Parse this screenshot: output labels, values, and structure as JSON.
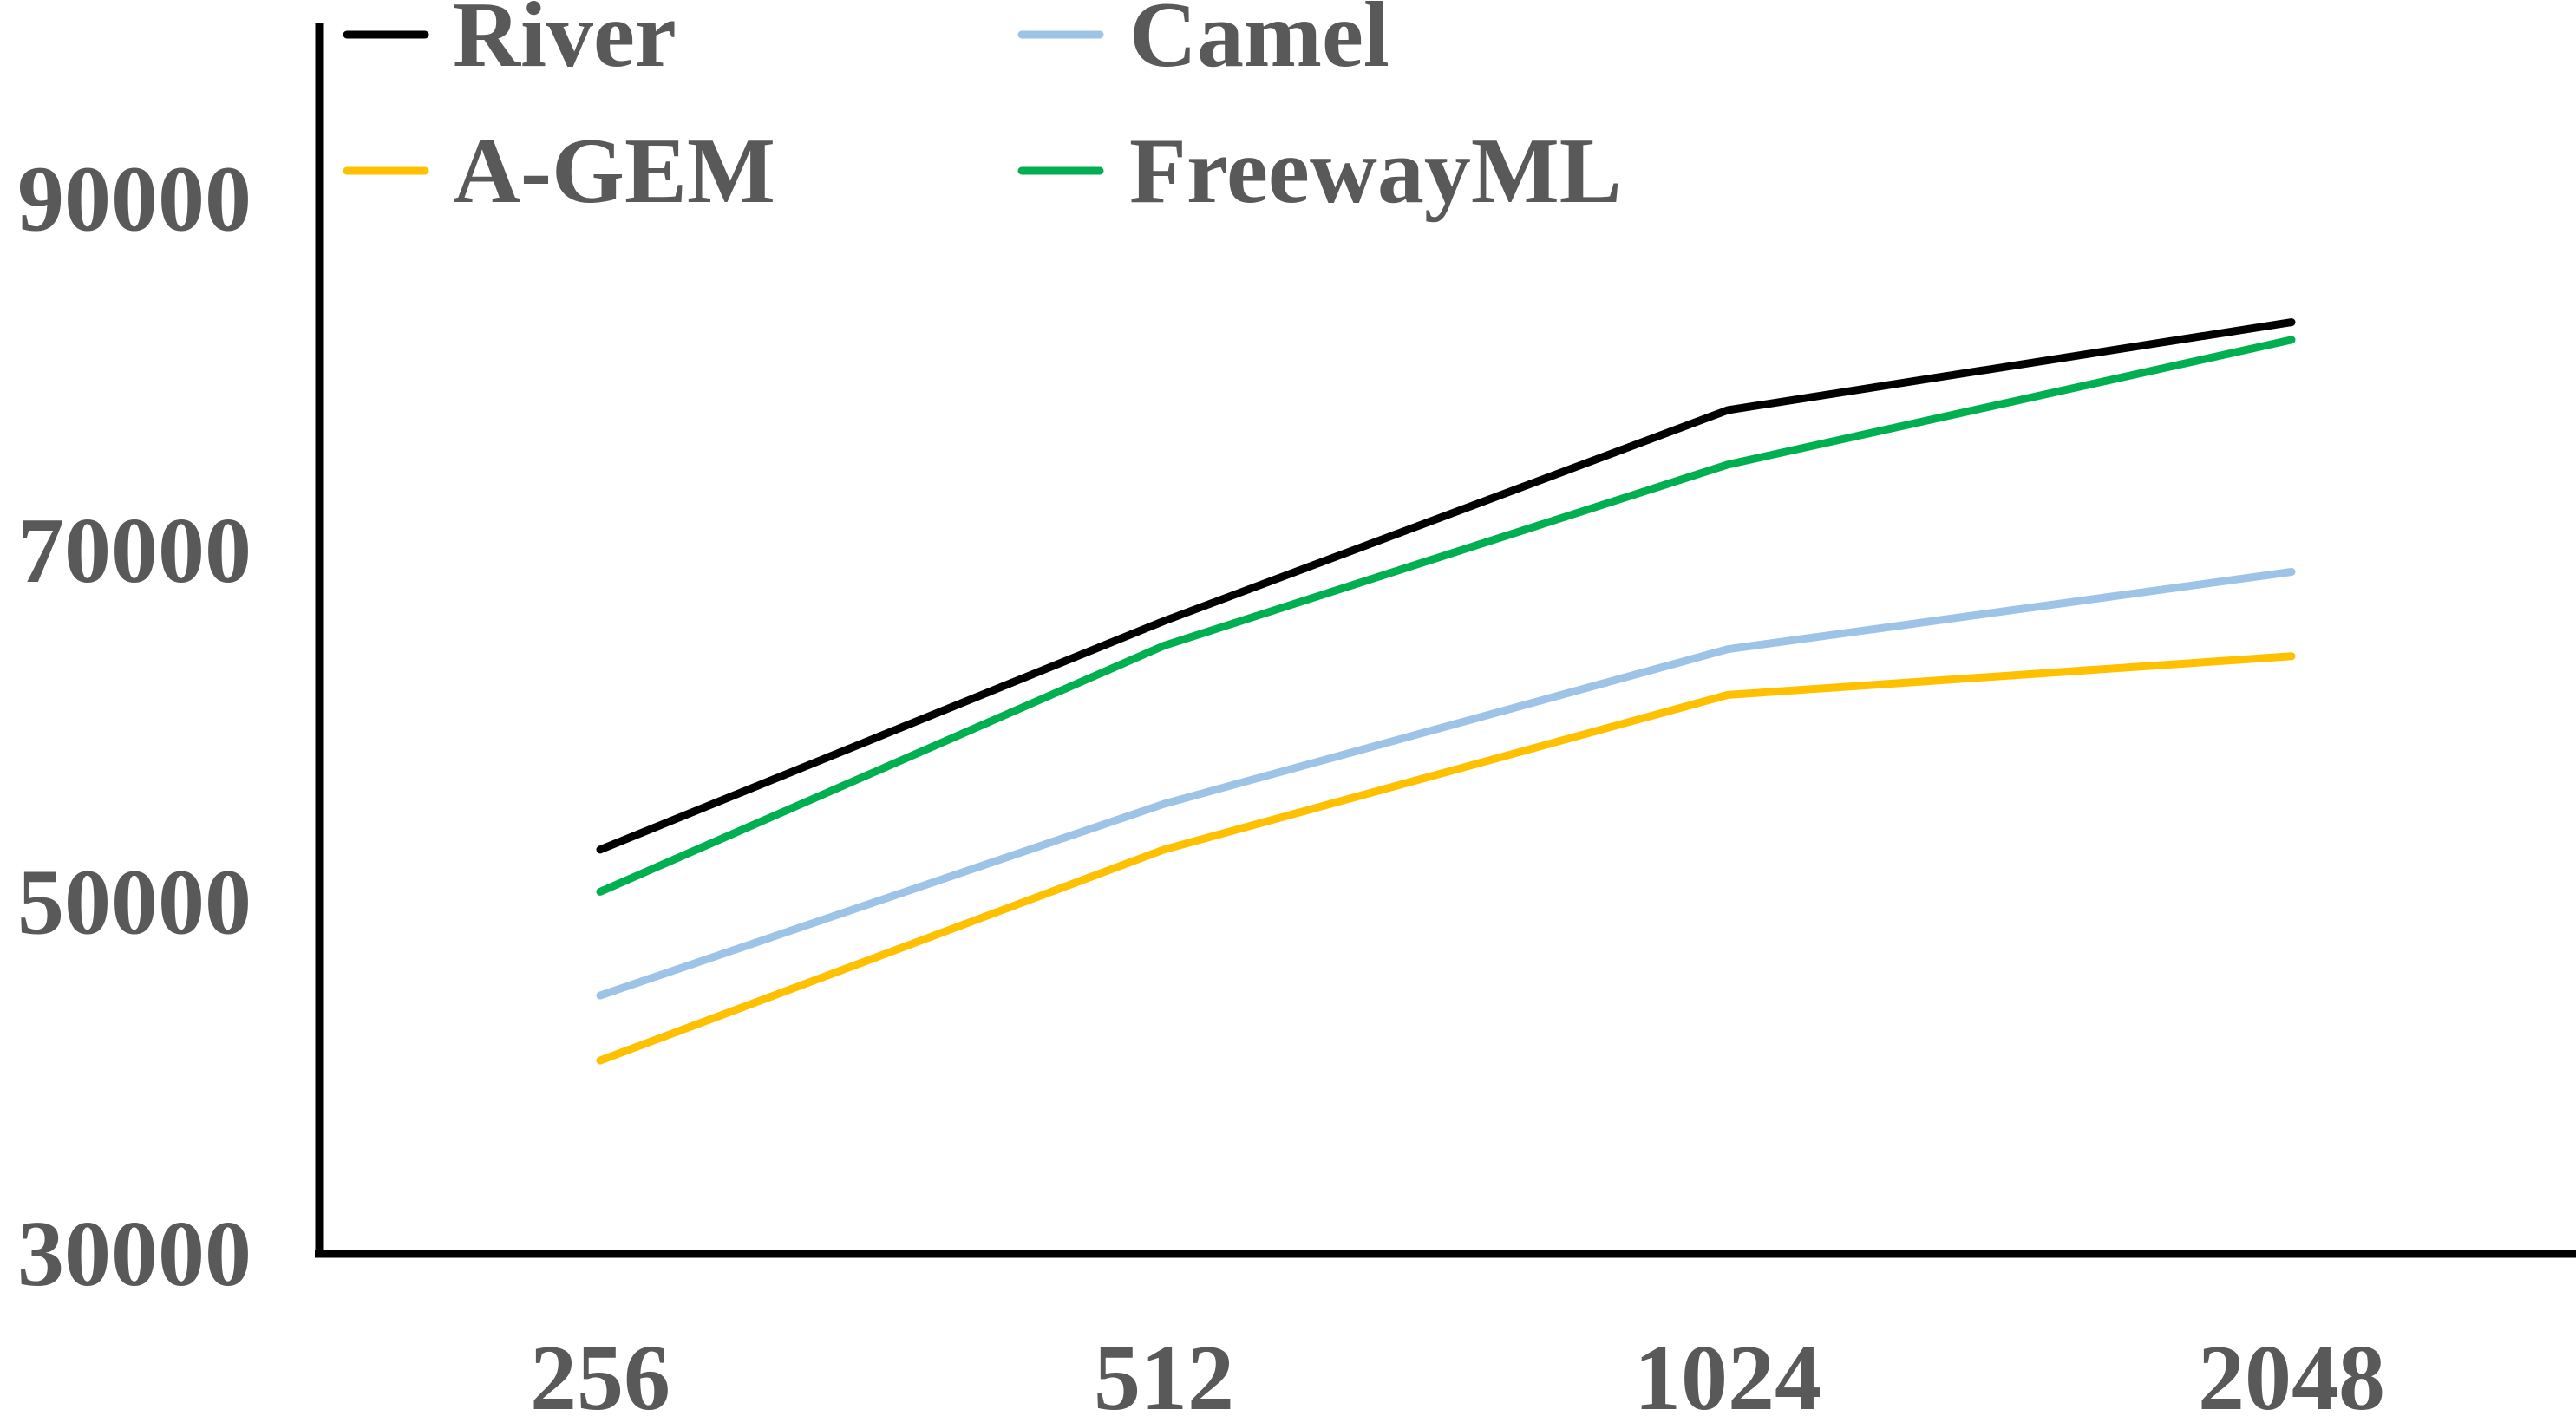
{
  "chart_data": {
    "type": "line",
    "categories": [
      "256",
      "512",
      "1024",
      "2048"
    ],
    "yticks": [
      "30000",
      "50000",
      "70000",
      "90000"
    ],
    "ylim": [
      30000,
      100000
    ],
    "grid": false,
    "legend_position": "top",
    "series": [
      {
        "name": "River",
        "color": "#000000",
        "values": [
          53000,
          66000,
          78000,
          83000
        ]
      },
      {
        "name": "A-GEM",
        "color": "#FFC000",
        "values": [
          41000,
          53000,
          61800,
          64000
        ]
      },
      {
        "name": "Camel",
        "color": "#9DC3E6",
        "values": [
          44700,
          55600,
          64400,
          68800
        ]
      },
      {
        "name": "FreewayML",
        "color": "#00B050",
        "values": [
          50600,
          64600,
          74900,
          82000
        ]
      }
    ]
  }
}
